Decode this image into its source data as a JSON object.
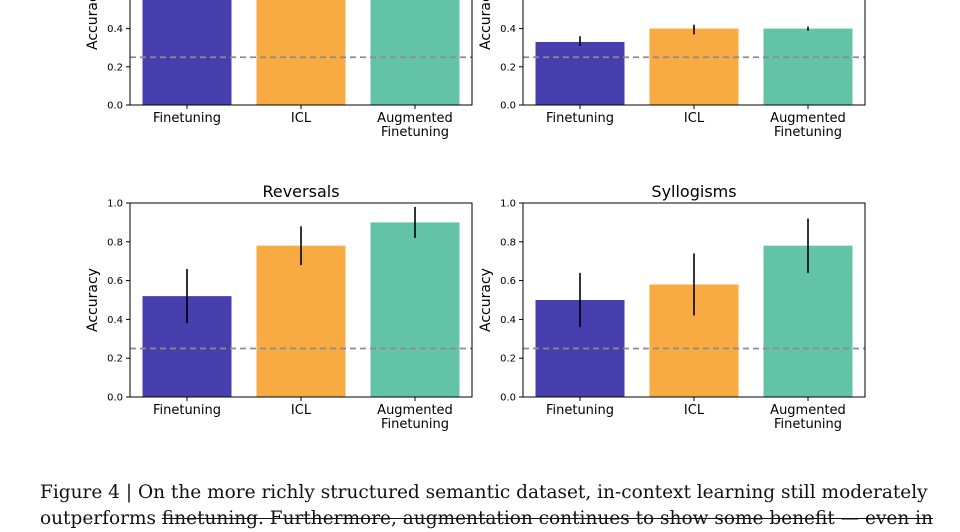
{
  "chart_data": [
    {
      "type": "bar",
      "title": "",
      "ylabel": "Accuracy",
      "ylim": [
        0,
        1
      ],
      "yticks": [
        "0.0",
        "0.2",
        "0.4"
      ],
      "categories": [
        "Finetuning",
        "ICL",
        "Augmented Finetuning"
      ],
      "values": [
        null,
        null,
        null
      ],
      "error_bars": [
        null,
        null,
        null
      ],
      "bars_cropped_top": true,
      "colors": [
        "#463fad",
        "#f8ab43",
        "#62c3a6"
      ],
      "chance_line": 0.25
    },
    {
      "type": "bar",
      "title": "",
      "ylabel": "Accuracy",
      "ylim": [
        0,
        1
      ],
      "yticks": [
        "0.0",
        "0.2",
        "0.4"
      ],
      "categories": [
        "Finetuning",
        "ICL",
        "Augmented Finetuning"
      ],
      "values": [
        0.33,
        0.4,
        0.4
      ],
      "error_bars": [
        [
          0.31,
          0.36
        ],
        [
          0.37,
          0.42
        ],
        [
          0.39,
          0.41
        ]
      ],
      "colors": [
        "#463fad",
        "#f8ab43",
        "#62c3a6"
      ],
      "chance_line": 0.25
    },
    {
      "type": "bar",
      "title": "Reversals",
      "ylabel": "Accuracy",
      "ylim": [
        0,
        1
      ],
      "yticks": [
        "0.0",
        "0.2",
        "0.4",
        "0.6",
        "0.8",
        "1.0"
      ],
      "categories": [
        "Finetuning",
        "ICL",
        "Augmented Finetuning"
      ],
      "values": [
        0.52,
        0.78,
        0.9
      ],
      "error_bars": [
        [
          0.38,
          0.66
        ],
        [
          0.68,
          0.88
        ],
        [
          0.82,
          0.98
        ]
      ],
      "colors": [
        "#463fad",
        "#f8ab43",
        "#62c3a6"
      ],
      "chance_line": 0.25
    },
    {
      "type": "bar",
      "title": "Syllogisms",
      "ylabel": "Accuracy",
      "ylim": [
        0,
        1
      ],
      "yticks": [
        "0.0",
        "0.2",
        "0.4",
        "0.6",
        "0.8",
        "1.0"
      ],
      "categories": [
        "Finetuning",
        "ICL",
        "Augmented Finetuning"
      ],
      "values": [
        0.5,
        0.58,
        0.78
      ],
      "error_bars": [
        [
          0.36,
          0.64
        ],
        [
          0.42,
          0.74
        ],
        [
          0.64,
          0.92
        ]
      ],
      "colors": [
        "#463fad",
        "#f8ab43",
        "#62c3a6"
      ],
      "chance_line": 0.25
    }
  ],
  "caption": {
    "line1": "Figure 4 | On the more richly structured semantic dataset, in-context learning still moderately",
    "line2_start": "outperforms ",
    "line2_strike": "finetuning. Furthermore, augmentation continues to show some benefit — even in"
  }
}
